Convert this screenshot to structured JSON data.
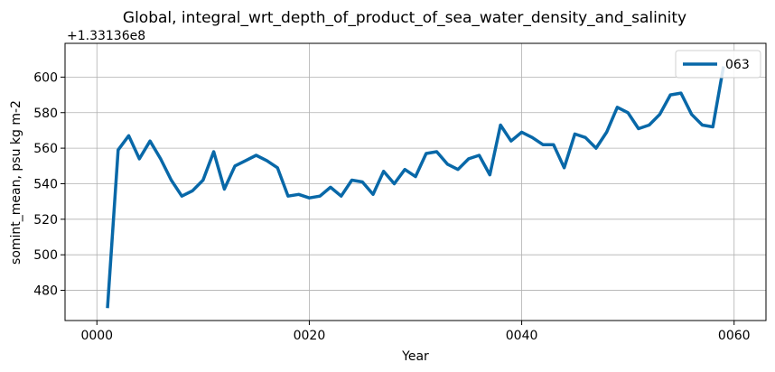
{
  "chart_data": {
    "type": "line",
    "title": "Global, integral_wrt_depth_of_product_of_sea_water_density_and_salinity",
    "xlabel": "Year",
    "ylabel": "somint_mean, psu kg m-2",
    "y_offset_label": "+1.33136e8",
    "xlim": [
      -3,
      63
    ],
    "ylim": [
      463,
      619
    ],
    "xticks": [
      0,
      20,
      40,
      60
    ],
    "xtick_labels": [
      "0000",
      "0020",
      "0040",
      "0060"
    ],
    "yticks": [
      480,
      500,
      520,
      540,
      560,
      580,
      600
    ],
    "ytick_labels": [
      "480",
      "500",
      "520",
      "540",
      "560",
      "580",
      "600"
    ],
    "grid": true,
    "legend_position": "top-right",
    "series": [
      {
        "name": "063",
        "color": "#0868a8",
        "x": [
          1,
          2,
          3,
          4,
          5,
          6,
          7,
          8,
          9,
          10,
          11,
          12,
          13,
          14,
          15,
          16,
          17,
          18,
          19,
          20,
          21,
          22,
          23,
          24,
          25,
          26,
          27,
          28,
          29,
          30,
          31,
          32,
          33,
          34,
          35,
          36,
          37,
          38,
          39,
          40,
          41,
          42,
          43,
          44,
          45,
          46,
          47,
          48,
          49,
          50,
          51,
          52,
          53,
          54,
          55,
          56,
          57,
          58,
          59
        ],
        "y": [
          470,
          559,
          567,
          554,
          564,
          554,
          542,
          533,
          536,
          542,
          558,
          537,
          550,
          553,
          556,
          553,
          549,
          533,
          534,
          532,
          533,
          538,
          533,
          542,
          541,
          534,
          547,
          540,
          548,
          544,
          557,
          558,
          551,
          548,
          554,
          556,
          545,
          573,
          564,
          569,
          566,
          562,
          562,
          549,
          568,
          566,
          560,
          569,
          583,
          580,
          571,
          573,
          579,
          590,
          591,
          579,
          573,
          572,
          606
        ]
      }
    ]
  }
}
